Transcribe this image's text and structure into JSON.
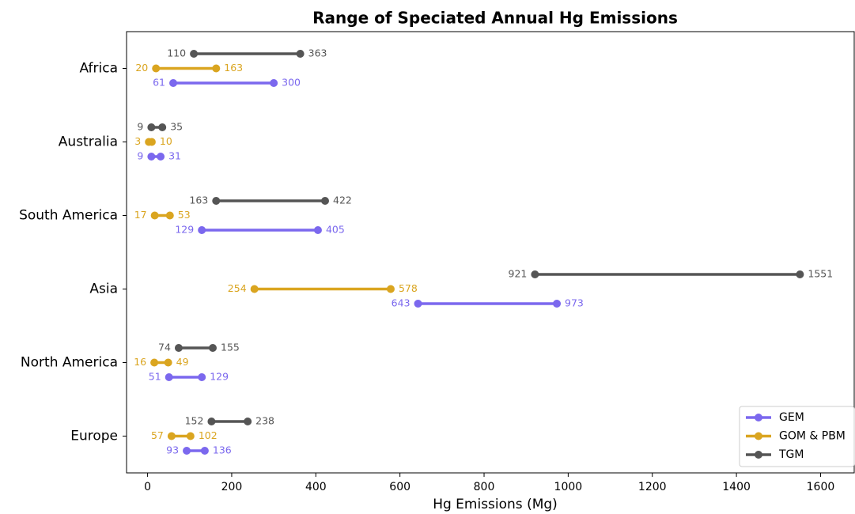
{
  "chart_data": {
    "type": "dumbbell",
    "title": "Range of Speciated Annual Hg Emissions",
    "x_label": "Hg Emissions (Mg)",
    "categories": [
      "Africa",
      "Australia",
      "South America",
      "Asia",
      "North America",
      "Europe"
    ],
    "series": [
      {
        "name": "GEM",
        "color": "#7b68ee",
        "values": [
          [
            61,
            300
          ],
          [
            9,
            31
          ],
          [
            129,
            405
          ],
          [
            643,
            973
          ],
          [
            51,
            129
          ],
          [
            93,
            136
          ]
        ]
      },
      {
        "name": "GOM & PBM",
        "color": "#daa520",
        "values": [
          [
            20,
            163
          ],
          [
            3,
            10
          ],
          [
            17,
            53
          ],
          [
            254,
            578
          ],
          [
            16,
            49
          ],
          [
            57,
            102
          ]
        ]
      },
      {
        "name": "TGM",
        "color": "#555555",
        "values": [
          [
            110,
            363
          ],
          [
            9,
            35
          ],
          [
            163,
            422
          ],
          [
            921,
            1551
          ],
          [
            74,
            155
          ],
          [
            152,
            238
          ]
        ]
      }
    ],
    "xlim": [
      -50,
      1680
    ],
    "xticks": [
      0,
      200,
      400,
      600,
      800,
      1000,
      1200,
      1400,
      1600
    ],
    "legend": "lower right"
  }
}
